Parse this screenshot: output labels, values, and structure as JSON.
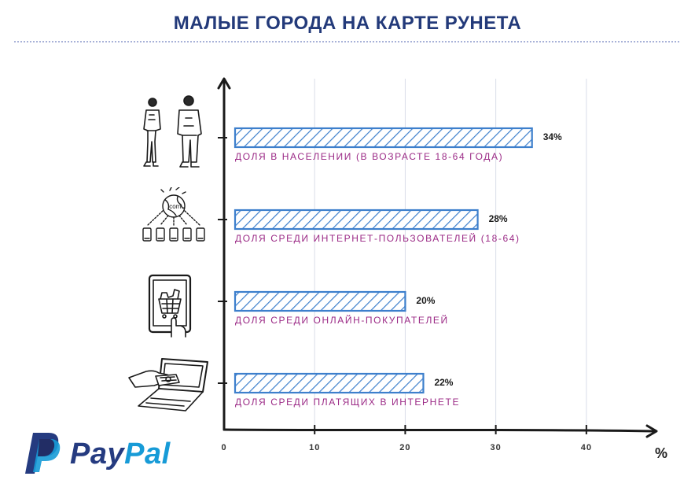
{
  "title": "МАЛЫЕ ГОРОДА НА КАРТЕ РУНЕТА",
  "brand": {
    "part1": "Pay",
    "part2": "Pal",
    "color_dark": "#253b80",
    "color_light": "#179bd7"
  },
  "colors": {
    "title": "#233a7a",
    "bar_stroke": "#3d7fcc",
    "label": "#9b2a86"
  },
  "icons": [
    "people-icon",
    "globe-network-icon",
    "tablet-shopping-icon",
    "laptop-payment-icon"
  ],
  "chart_data": {
    "type": "bar",
    "orientation": "horizontal",
    "title": "МАЛЫЕ ГОРОДА НА КАРТЕ РУНЕТА",
    "categories": [
      "ДОЛЯ В НАСЕЛЕНИИ (В ВОЗРАСТЕ 18-64 ГОДА)",
      "ДОЛЯ СРЕДИ ИНТЕРНЕТ-ПОЛЬЗОВАТЕЛЕЙ (18-64)",
      "ДОЛЯ СРЕДИ ОНЛАЙН-ПОКУПАТЕЛЕЙ",
      "ДОЛЯ СРЕДИ ПЛАТЯЩИХ В ИНТЕРНЕТЕ"
    ],
    "values": [
      34,
      28,
      20,
      22
    ],
    "value_labels": [
      "34%",
      "28%",
      "20%",
      "22%"
    ],
    "xlim": [
      0,
      48
    ],
    "xticks": [
      0,
      10,
      20,
      30,
      40
    ],
    "xtick_labels": [
      "0",
      "10",
      "20",
      "30",
      "40"
    ],
    "xlabel": "%",
    "grid": "vertical"
  }
}
